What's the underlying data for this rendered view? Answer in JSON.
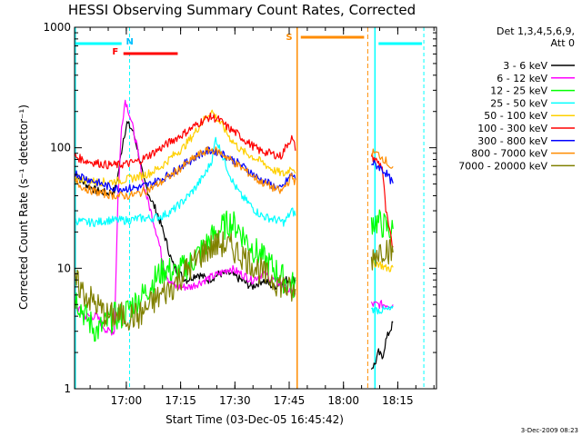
{
  "chart_data": {
    "type": "line",
    "title": "HESSI Observing Summary Count Rates, Corrected",
    "xlabel": "Start Time (03-Dec-05 16:45:42)",
    "ylabel": "Corrected Count Rate (s⁻¹ detector⁻¹)",
    "yscale": "log",
    "ylim": [
      1,
      1000
    ],
    "xlim_minutes": [
      0,
      100
    ],
    "xticks": [
      {
        "t": 14.3,
        "label": "17:00"
      },
      {
        "t": 29.3,
        "label": "17:15"
      },
      {
        "t": 44.3,
        "label": "17:30"
      },
      {
        "t": 59.3,
        "label": "17:45"
      },
      {
        "t": 74.3,
        "label": "18:00"
      },
      {
        "t": 89.3,
        "label": "18:15"
      }
    ],
    "yticks": [
      {
        "v": 1,
        "label": "1"
      },
      {
        "v": 10,
        "label": "10"
      },
      {
        "v": 100,
        "label": "100"
      },
      {
        "v": 1000,
        "label": "1000"
      }
    ],
    "legend": {
      "header": [
        "Det 1,3,4,5,6,9,",
        "Att 0"
      ],
      "placement": "right"
    },
    "gaps": [
      [
        61,
        82
      ]
    ],
    "series": [
      {
        "name": "3 - 6 keV",
        "color": "#000000",
        "points": [
          [
            0,
            60
          ],
          [
            3,
            50
          ],
          [
            6,
            44
          ],
          [
            9,
            42
          ],
          [
            11,
            44
          ],
          [
            12,
            60
          ],
          [
            13.5,
            120
          ],
          [
            14.5,
            160
          ],
          [
            16,
            140
          ],
          [
            17,
            110
          ],
          [
            18,
            80
          ],
          [
            19,
            55
          ],
          [
            21,
            38
          ],
          [
            23,
            28
          ],
          [
            25,
            18
          ],
          [
            27,
            11
          ],
          [
            29,
            9
          ],
          [
            31,
            8
          ],
          [
            34,
            9
          ],
          [
            37,
            8
          ],
          [
            40,
            9
          ],
          [
            43,
            9
          ],
          [
            46,
            8
          ],
          [
            49,
            7
          ],
          [
            52,
            8
          ],
          [
            55,
            7
          ],
          [
            58,
            8
          ],
          [
            61,
            8
          ],
          [
            82,
            1.5
          ],
          [
            83,
            1.6
          ],
          [
            84,
            2
          ],
          [
            85,
            1.8
          ],
          [
            86,
            2.5
          ],
          [
            87,
            3
          ],
          [
            88,
            3.5
          ]
        ]
      },
      {
        "name": "6 - 12 keV",
        "color": "#ff00ff",
        "points": [
          [
            0,
            5
          ],
          [
            3,
            4
          ],
          [
            6,
            4
          ],
          [
            9,
            3
          ],
          [
            11,
            3
          ],
          [
            12,
            40
          ],
          [
            13,
            150
          ],
          [
            14,
            250
          ],
          [
            15,
            200
          ],
          [
            16,
            150
          ],
          [
            17,
            110
          ],
          [
            18,
            75
          ],
          [
            19,
            50
          ],
          [
            21,
            30
          ],
          [
            23,
            18
          ],
          [
            24.5,
            11
          ],
          [
            26,
            8
          ],
          [
            28,
            7
          ],
          [
            32,
            7
          ],
          [
            36,
            8
          ],
          [
            40,
            9
          ],
          [
            43,
            10
          ],
          [
            46,
            9
          ],
          [
            49,
            8
          ],
          [
            52,
            9
          ],
          [
            55,
            8
          ],
          [
            58,
            7
          ],
          [
            61,
            6
          ],
          [
            82,
            5
          ],
          [
            84,
            5
          ],
          [
            86,
            5
          ],
          [
            88,
            5
          ]
        ]
      },
      {
        "name": "12 - 25 keV",
        "color": "#00ff00",
        "points": [
          [
            0,
            6
          ],
          [
            3,
            4
          ],
          [
            6,
            3
          ],
          [
            9,
            3.5
          ],
          [
            11,
            4
          ],
          [
            13,
            4
          ],
          [
            16,
            5
          ],
          [
            19,
            6
          ],
          [
            22,
            8
          ],
          [
            25,
            10
          ],
          [
            28,
            9
          ],
          [
            32,
            11
          ],
          [
            35,
            14
          ],
          [
            38,
            18
          ],
          [
            41,
            22
          ],
          [
            43,
            24
          ],
          [
            45,
            22
          ],
          [
            47,
            18
          ],
          [
            49,
            15
          ],
          [
            52,
            12
          ],
          [
            55,
            10
          ],
          [
            58,
            8
          ],
          [
            61,
            7
          ],
          [
            82,
            25
          ],
          [
            84,
            24
          ],
          [
            86,
            22
          ],
          [
            88,
            20
          ]
        ]
      },
      {
        "name": "25 - 50 keV",
        "color": "#00ffff",
        "points": [
          [
            0,
            25
          ],
          [
            3,
            24
          ],
          [
            6,
            24
          ],
          [
            9,
            25
          ],
          [
            12,
            25
          ],
          [
            15,
            25
          ],
          [
            18,
            26
          ],
          [
            21,
            26
          ],
          [
            24,
            27
          ],
          [
            27,
            30
          ],
          [
            30,
            36
          ],
          [
            33,
            45
          ],
          [
            36,
            60
          ],
          [
            38,
            80
          ],
          [
            39,
            120
          ],
          [
            40,
            100
          ],
          [
            42,
            70
          ],
          [
            44,
            50
          ],
          [
            46,
            40
          ],
          [
            48,
            35
          ],
          [
            50,
            30
          ],
          [
            52,
            27
          ],
          [
            54,
            26
          ],
          [
            56,
            25
          ],
          [
            58,
            24
          ],
          [
            60,
            30
          ],
          [
            61,
            28
          ],
          [
            82,
            4.5
          ],
          [
            84,
            4.5
          ],
          [
            86,
            4.5
          ],
          [
            88,
            4.5
          ]
        ]
      },
      {
        "name": "50 - 100 keV",
        "color": "#ffd000",
        "points": [
          [
            0,
            58
          ],
          [
            3,
            54
          ],
          [
            6,
            52
          ],
          [
            9,
            52
          ],
          [
            12,
            53
          ],
          [
            15,
            55
          ],
          [
            18,
            58
          ],
          [
            21,
            62
          ],
          [
            24,
            70
          ],
          [
            27,
            85
          ],
          [
            30,
            100
          ],
          [
            33,
            130
          ],
          [
            35,
            160
          ],
          [
            37,
            190
          ],
          [
            38,
            200
          ],
          [
            39,
            180
          ],
          [
            41,
            150
          ],
          [
            43,
            120
          ],
          [
            46,
            95
          ],
          [
            49,
            85
          ],
          [
            52,
            75
          ],
          [
            55,
            65
          ],
          [
            58,
            60
          ],
          [
            60,
            70
          ],
          [
            61,
            65
          ],
          [
            82,
            11
          ],
          [
            84,
            11
          ],
          [
            86,
            10
          ],
          [
            88,
            10
          ]
        ]
      },
      {
        "name": "100 - 300 keV",
        "color": "#ff0000",
        "points": [
          [
            0,
            85
          ],
          [
            3,
            78
          ],
          [
            6,
            75
          ],
          [
            9,
            72
          ],
          [
            12,
            72
          ],
          [
            15,
            74
          ],
          [
            18,
            78
          ],
          [
            21,
            88
          ],
          [
            24,
            100
          ],
          [
            27,
            115
          ],
          [
            30,
            130
          ],
          [
            33,
            150
          ],
          [
            35,
            165
          ],
          [
            37,
            178
          ],
          [
            38,
            180
          ],
          [
            40,
            170
          ],
          [
            42,
            150
          ],
          [
            45,
            130
          ],
          [
            48,
            110
          ],
          [
            51,
            95
          ],
          [
            54,
            90
          ],
          [
            57,
            85
          ],
          [
            59,
            110
          ],
          [
            60,
            120
          ],
          [
            61,
            100
          ],
          [
            82,
            85
          ],
          [
            83,
            80
          ],
          [
            84,
            75
          ],
          [
            85,
            70
          ],
          [
            86,
            30
          ],
          [
            87,
            20
          ],
          [
            88,
            15
          ]
        ]
      },
      {
        "name": "300 - 800 keV",
        "color": "#0000ff",
        "points": [
          [
            0,
            62
          ],
          [
            3,
            56
          ],
          [
            6,
            52
          ],
          [
            9,
            48
          ],
          [
            12,
            46
          ],
          [
            15,
            46
          ],
          [
            18,
            47
          ],
          [
            21,
            50
          ],
          [
            24,
            55
          ],
          [
            27,
            62
          ],
          [
            30,
            72
          ],
          [
            33,
            82
          ],
          [
            35,
            90
          ],
          [
            37,
            94
          ],
          [
            38,
            95
          ],
          [
            40,
            92
          ],
          [
            42,
            85
          ],
          [
            45,
            75
          ],
          [
            48,
            65
          ],
          [
            51,
            55
          ],
          [
            54,
            50
          ],
          [
            57,
            45
          ],
          [
            59,
            55
          ],
          [
            60,
            60
          ],
          [
            61,
            55
          ],
          [
            82,
            75
          ],
          [
            84,
            70
          ],
          [
            86,
            62
          ],
          [
            88,
            50
          ]
        ]
      },
      {
        "name": "800 - 7000 keV",
        "color": "#ff8c00",
        "points": [
          [
            0,
            52
          ],
          [
            3,
            46
          ],
          [
            6,
            43
          ],
          [
            9,
            41
          ],
          [
            12,
            40
          ],
          [
            15,
            40
          ],
          [
            18,
            42
          ],
          [
            21,
            46
          ],
          [
            24,
            52
          ],
          [
            27,
            60
          ],
          [
            30,
            70
          ],
          [
            33,
            82
          ],
          [
            35,
            90
          ],
          [
            37,
            95
          ],
          [
            38,
            96
          ],
          [
            40,
            92
          ],
          [
            42,
            84
          ],
          [
            45,
            72
          ],
          [
            48,
            62
          ],
          [
            51,
            53
          ],
          [
            54,
            48
          ],
          [
            57,
            43
          ],
          [
            59,
            52
          ],
          [
            60,
            58
          ],
          [
            61,
            52
          ],
          [
            82,
            92
          ],
          [
            84,
            88
          ],
          [
            86,
            78
          ],
          [
            88,
            65
          ]
        ]
      },
      {
        "name": "7000 - 20000 keV",
        "color": "#808000",
        "points": [
          [
            0,
            8
          ],
          [
            3,
            6
          ],
          [
            6,
            5
          ],
          [
            9,
            4
          ],
          [
            12,
            4
          ],
          [
            15,
            4
          ],
          [
            18,
            4
          ],
          [
            21,
            5
          ],
          [
            24,
            6
          ],
          [
            27,
            7
          ],
          [
            30,
            9
          ],
          [
            33,
            11
          ],
          [
            36,
            14
          ],
          [
            38,
            15
          ],
          [
            40,
            16
          ],
          [
            43,
            15
          ],
          [
            46,
            13
          ],
          [
            49,
            11
          ],
          [
            52,
            9
          ],
          [
            55,
            8
          ],
          [
            58,
            7
          ],
          [
            61,
            6
          ],
          [
            82,
            12
          ],
          [
            84,
            14
          ],
          [
            86,
            15
          ],
          [
            88,
            13
          ]
        ]
      }
    ],
    "markers": [
      {
        "label": "N",
        "color": "#00bfff"
      },
      {
        "label": "F",
        "color": "#ff0000"
      },
      {
        "label": "S",
        "color": "#ff8c00"
      }
    ],
    "colors": {
      "night": "#00ffff",
      "flare": "#ff0000",
      "saa": "#ff8c00",
      "axes": "#000000"
    }
  },
  "footer": {
    "date_stamp": "3-Dec-2009 08:23"
  }
}
